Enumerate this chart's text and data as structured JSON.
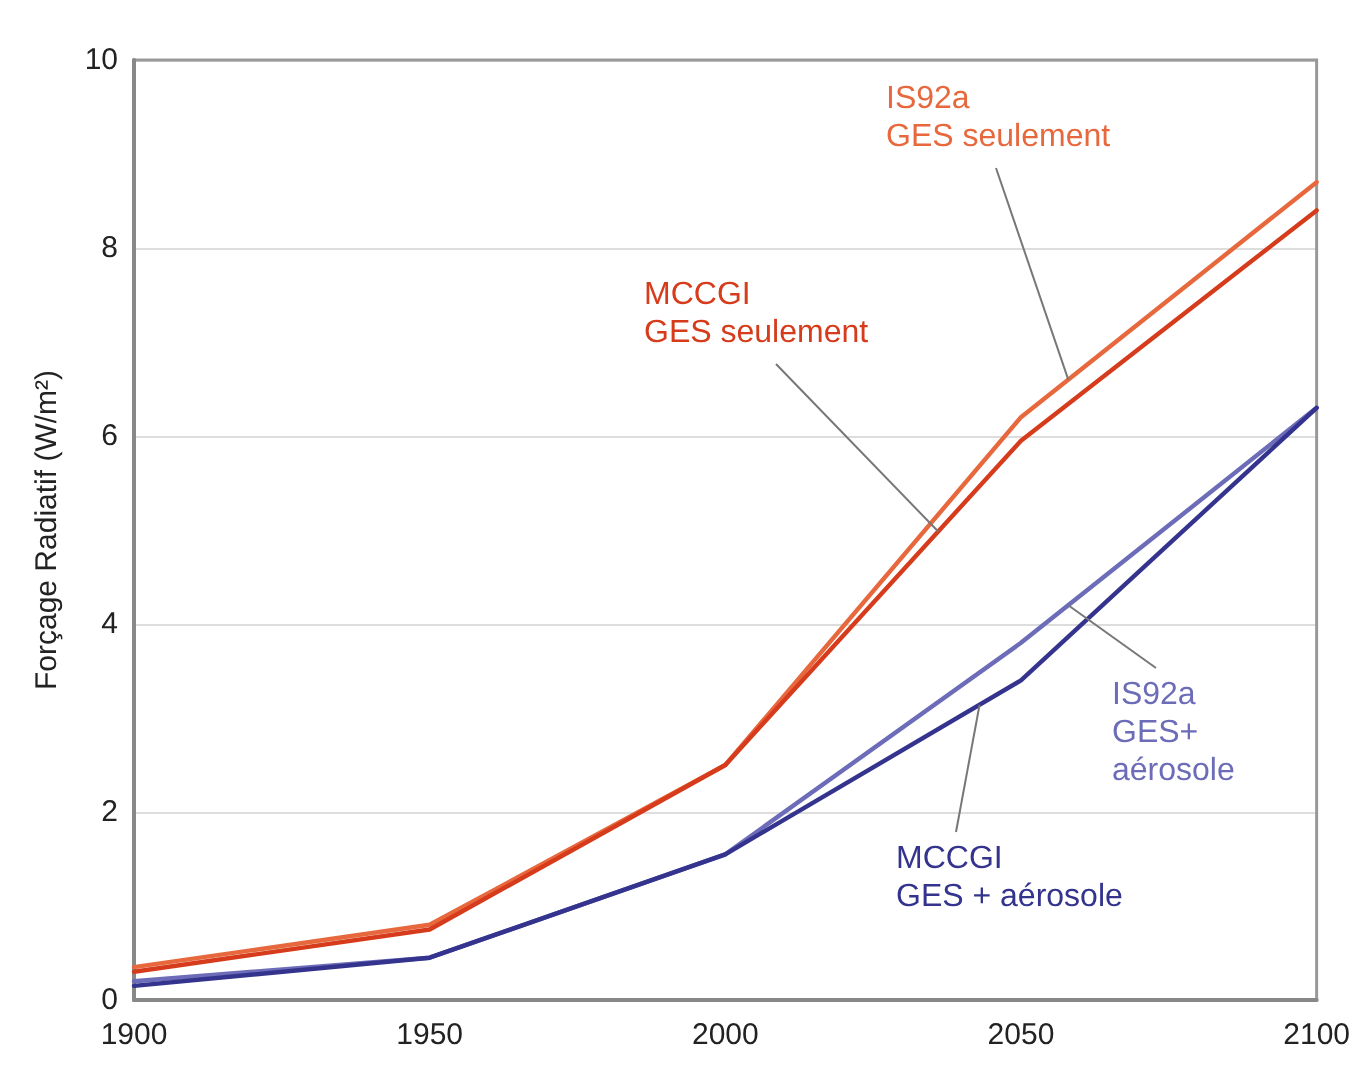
{
  "chart_data": {
    "type": "line",
    "ylabel": "Forçage Radiatif (W/m²)",
    "x": [
      1900,
      1950,
      2000,
      2050,
      2100
    ],
    "xlim": [
      1900,
      2100
    ],
    "xticks": [
      1900,
      1950,
      2000,
      2050,
      2100
    ],
    "ylim": [
      0,
      10
    ],
    "yticks": [
      0,
      2,
      4,
      6,
      8,
      10
    ],
    "grid": "y",
    "marker": "none",
    "line_style": "solid",
    "series": [
      {
        "name": "IS92a\nGES seulement",
        "color": "#e8683e",
        "values": [
          0.35,
          0.8,
          2.5,
          6.2,
          8.7
        ]
      },
      {
        "name": "MCCGI\nGES seulement",
        "color": "#d63c1c",
        "values": [
          0.3,
          0.75,
          2.5,
          5.95,
          8.4
        ]
      },
      {
        "name": "IS92a\nGES+\naérosole",
        "color": "#6c6cb8",
        "values": [
          0.2,
          0.45,
          1.55,
          3.8,
          6.3
        ]
      },
      {
        "name": "MCCGI\nGES + aérosole",
        "color": "#34348e",
        "values": [
          0.15,
          0.45,
          1.55,
          3.4,
          6.3
        ]
      }
    ]
  }
}
